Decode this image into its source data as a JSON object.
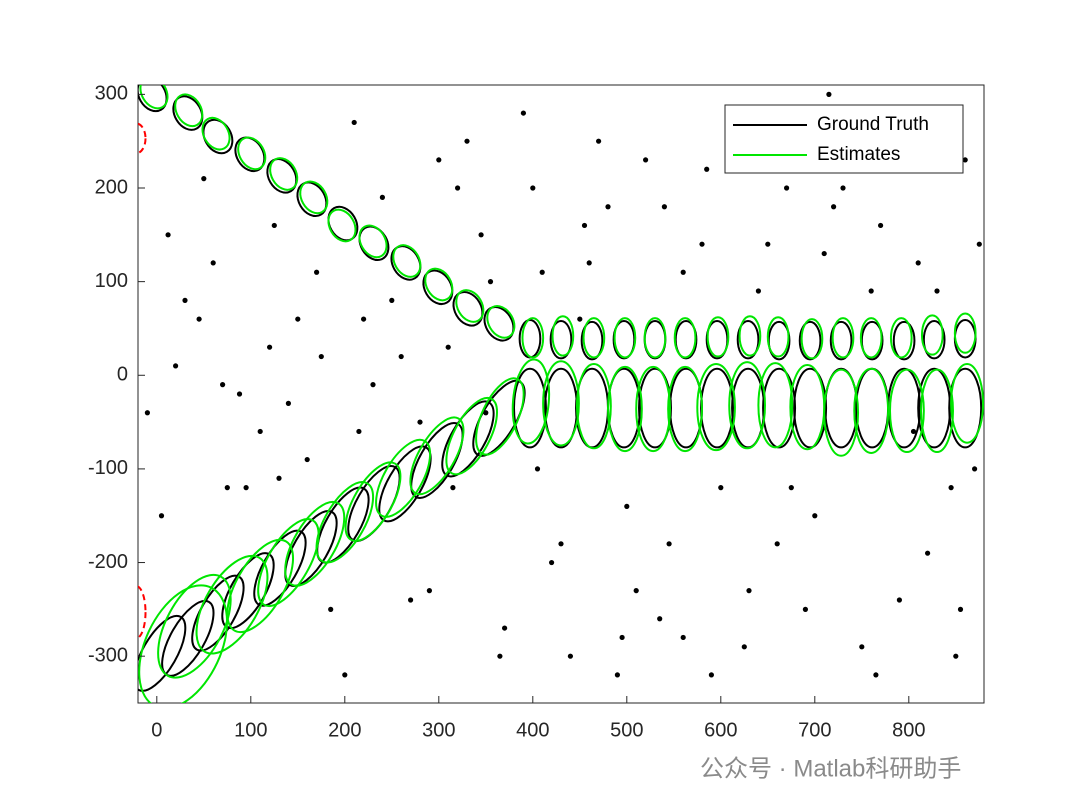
{
  "chart_data": {
    "type": "ellipse-tracks",
    "xlim": [
      -20,
      880
    ],
    "ylim": [
      -350,
      310
    ],
    "xticks": [
      0,
      100,
      200,
      300,
      400,
      500,
      600,
      700,
      800
    ],
    "yticks": [
      -300,
      -200,
      -100,
      0,
      100,
      200,
      300
    ],
    "legend": "northeast",
    "series": [
      {
        "name": "Ground Truth",
        "color": "#000000",
        "x": [
          -5,
          33,
          65,
          99,
          133,
          165,
          198,
          231,
          265,
          299,
          331,
          364,
          397,
          430,
          463,
          497,
          530,
          563,
          596,
          629,
          662,
          695,
          728,
          761,
          795,
          827,
          860,
          3,
          33,
          65,
          97,
          131,
          164,
          198,
          231,
          264,
          298,
          331,
          364,
          397,
          430,
          463,
          497,
          530,
          563,
          596,
          629,
          662,
          695,
          728,
          761,
          795,
          827,
          860
        ],
        "y": [
          300,
          280,
          255,
          236,
          213,
          188,
          162,
          141,
          120,
          94,
          71,
          55,
          39,
          38,
          37,
          38,
          38,
          38,
          38,
          38,
          37,
          37,
          37,
          37,
          37,
          38,
          39,
          -297,
          -281,
          -254,
          -230,
          -206,
          -185,
          -160,
          -137,
          -116,
          -91,
          -68,
          -46,
          -35,
          -35,
          -35,
          -35,
          -35,
          -35,
          -35,
          -35,
          -35,
          -35,
          -35,
          -35,
          -35,
          -35,
          -35
        ],
        "rx": [
          14,
          14,
          14,
          14,
          14,
          14,
          14,
          14,
          14,
          14,
          14,
          14,
          11,
          11,
          11,
          11,
          11,
          11,
          11,
          11,
          11,
          11,
          11,
          11,
          11,
          11,
          11,
          18,
          18,
          18,
          18,
          18,
          18,
          18,
          18,
          18,
          18,
          18,
          18,
          17,
          17,
          17,
          17,
          17,
          17,
          17,
          17,
          17,
          17,
          17,
          17,
          17,
          17,
          17
        ],
        "ry": [
          19,
          19,
          19,
          19,
          19,
          19,
          19,
          19,
          19,
          19,
          19,
          19,
          20,
          20,
          20,
          20,
          20,
          20,
          20,
          20,
          20,
          20,
          20,
          20,
          20,
          20,
          20,
          45,
          45,
          45,
          45,
          45,
          45,
          45,
          45,
          45,
          45,
          45,
          45,
          42,
          42,
          42,
          42,
          42,
          42,
          42,
          42,
          42,
          42,
          42,
          42,
          42,
          42,
          42
        ],
        "angle": [
          30,
          30,
          30,
          30,
          30,
          30,
          30,
          30,
          30,
          30,
          30,
          30,
          0,
          0,
          0,
          0,
          0,
          0,
          0,
          0,
          0,
          0,
          0,
          0,
          0,
          0,
          0,
          -30,
          -30,
          -30,
          -30,
          -30,
          -30,
          -30,
          -30,
          -30,
          -30,
          -30,
          -30,
          0,
          0,
          0,
          0,
          0,
          0,
          0,
          0,
          0,
          0,
          0,
          0,
          0,
          0,
          0
        ]
      },
      {
        "name": "Estimates",
        "color": "#00e600",
        "x": [
          -3,
          34,
          63,
          101,
          135,
          167,
          197,
          230,
          266,
          300,
          333,
          366,
          400,
          432,
          465,
          498,
          530,
          562,
          597,
          631,
          661,
          697,
          730,
          760,
          792,
          825,
          860,
          28,
          40,
          80,
          110,
          140,
          168,
          200,
          230,
          262,
          298,
          335,
          365,
          398,
          430,
          465,
          498,
          528,
          562,
          595,
          628,
          658,
          692,
          728,
          760,
          798,
          830,
          862
        ],
        "y": [
          302,
          283,
          258,
          237,
          215,
          190,
          160,
          143,
          122,
          97,
          74,
          57,
          40,
          42,
          40,
          40,
          40,
          40,
          41,
          42,
          41,
          39,
          40,
          40,
          40,
          43,
          45,
          -290,
          -268,
          -245,
          -225,
          -200,
          -180,
          -157,
          -135,
          -110,
          -86,
          -65,
          -44,
          -28,
          -30,
          -33,
          -36,
          -36,
          -36,
          -34,
          -32,
          -32,
          -34,
          -40,
          -38,
          -38,
          -38,
          -30
        ],
        "rx": [
          13,
          13,
          13,
          13,
          13,
          13,
          13,
          13,
          13,
          13,
          13,
          13,
          11,
          11,
          11,
          11,
          11,
          11,
          11,
          11,
          11,
          11,
          11,
          11,
          11,
          11,
          11,
          40,
          30,
          28,
          25,
          22,
          22,
          21,
          20,
          20,
          19,
          19,
          19,
          19,
          19,
          18,
          18,
          18,
          18,
          20,
          19,
          18,
          18,
          18,
          18,
          18,
          17,
          17
        ],
        "ry": [
          18,
          18,
          18,
          18,
          18,
          18,
          18,
          18,
          18,
          18,
          18,
          18,
          21,
          21,
          21,
          21,
          21,
          21,
          21,
          21,
          21,
          21,
          21,
          21,
          21,
          21,
          21,
          70,
          60,
          58,
          55,
          52,
          50,
          48,
          47,
          46,
          46,
          45,
          44,
          45,
          45,
          45,
          45,
          45,
          45,
          46,
          46,
          45,
          45,
          46,
          45,
          44,
          44,
          42
        ],
        "angle": [
          30,
          30,
          30,
          30,
          30,
          30,
          30,
          30,
          30,
          30,
          30,
          30,
          0,
          0,
          0,
          0,
          0,
          0,
          0,
          0,
          0,
          0,
          0,
          0,
          0,
          0,
          0,
          -25,
          -28,
          -30,
          -30,
          -30,
          -30,
          -30,
          -30,
          -30,
          -30,
          -28,
          -25,
          -5,
          0,
          0,
          0,
          0,
          0,
          0,
          0,
          0,
          0,
          0,
          0,
          0,
          0,
          0
        ]
      }
    ],
    "birth": {
      "color": "#ff0000",
      "x": [
        -22,
        -22
      ],
      "y": [
        253,
        -253
      ],
      "rx": [
        10,
        10
      ],
      "ry": [
        16,
        28
      ],
      "angle": [
        0,
        0
      ]
    },
    "clutter": {
      "color": "#000000",
      "x": [
        12,
        45,
        88,
        130,
        170,
        215,
        260,
        300,
        345,
        390,
        430,
        480,
        520,
        560,
        610,
        650,
        700,
        740,
        790,
        830,
        870,
        5,
        60,
        110,
        150,
        200,
        240,
        290,
        330,
        370,
        420,
        460,
        500,
        540,
        590,
        640,
        690,
        730,
        770,
        820,
        860,
        20,
        70,
        120,
        160,
        210,
        250,
        310,
        350,
        400,
        440,
        470,
        510,
        560,
        600,
        660,
        710,
        750,
        800,
        845,
        -10,
        50,
        95,
        140,
        185,
        230,
        280,
        320,
        365,
        410,
        455,
        495,
        545,
        585,
        630,
        675,
        720,
        765,
        810,
        855,
        30,
        75,
        125,
        175,
        220,
        270,
        315,
        355,
        405,
        450,
        490,
        535,
        580,
        625,
        670,
        715,
        760,
        805,
        850,
        875
      ],
      "y": [
        150,
        60,
        -20,
        -110,
        110,
        -60,
        20,
        230,
        150,
        280,
        -180,
        180,
        230,
        -280,
        280,
        140,
        -150,
        250,
        -240,
        90,
        -100,
        -150,
        120,
        -60,
        60,
        -320,
        190,
        -230,
        250,
        -270,
        -200,
        120,
        -140,
        180,
        -320,
        90,
        -250,
        200,
        160,
        -190,
        230,
        10,
        -10,
        30,
        -90,
        270,
        80,
        30,
        -40,
        200,
        -300,
        250,
        -230,
        110,
        -120,
        -180,
        130,
        -290,
        270,
        -120,
        -40,
        210,
        -120,
        -30,
        -250,
        -10,
        -50,
        200,
        -300,
        110,
        160,
        -280,
        -180,
        220,
        -230,
        -120,
        180,
        -320,
        120,
        -250,
        80,
        -120,
        160,
        20,
        60,
        -240,
        -120,
        100,
        -100,
        60,
        -320,
        -260,
        140,
        -290,
        200,
        300,
        90,
        -60,
        -300,
        140
      ]
    }
  }
}
